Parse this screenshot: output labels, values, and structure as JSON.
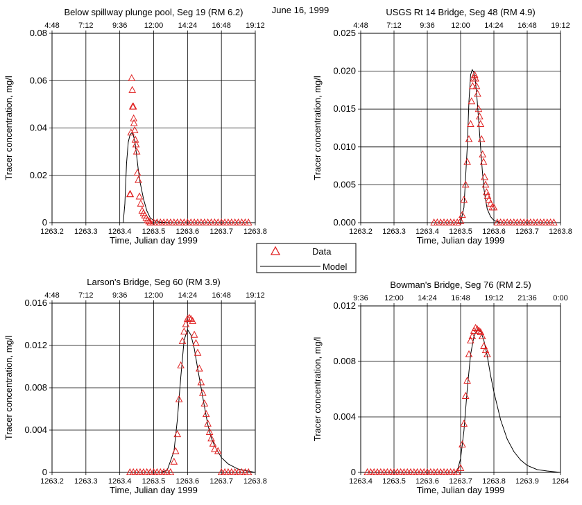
{
  "figure_title": "June 16, 1999",
  "legend": {
    "items": [
      {
        "label": "Data",
        "marker": "triangle",
        "color": "#e02020"
      },
      {
        "label": "Model",
        "marker": "line",
        "color": "#000000"
      }
    ]
  },
  "colors": {
    "data": "#e02020",
    "model": "#000000",
    "grid": "#000000"
  },
  "chart_data": [
    {
      "type": "line",
      "title": "Below spillway plunge pool, Seg 19 (RM 6.2)",
      "xlabel": "Time, Julian day 1999",
      "ylabel": "Tracer concentration, mg/l",
      "xlim": [
        1263.2,
        1263.8
      ],
      "ylim": [
        0,
        0.08
      ],
      "x_ticks": [
        "1263.2",
        "1263.3",
        "1263.4",
        "1263.5",
        "1263.6",
        "1263.7",
        "1263.8"
      ],
      "y_ticks": [
        "0",
        "0.02",
        "0.04",
        "0.06",
        "0.08"
      ],
      "top_ticks": [
        "4:48",
        "7:12",
        "9:36",
        "12:00",
        "14:24",
        "16:48",
        "19:12"
      ],
      "grid": true,
      "series": [
        {
          "name": "Data",
          "marker": "triangle",
          "x": [
            1263.43,
            1263.431,
            1263.433,
            1263.435,
            1263.437,
            1263.438,
            1263.44,
            1263.441,
            1263.442,
            1263.444,
            1263.446,
            1263.448,
            1263.45,
            1263.452,
            1263.455,
            1263.458,
            1263.462,
            1263.466,
            1263.47,
            1263.474,
            1263.478,
            1263.482,
            1263.486,
            1263.49,
            1263.5,
            1263.51,
            1263.52,
            1263.53,
            1263.54,
            1263.55,
            1263.56,
            1263.57,
            1263.58,
            1263.59,
            1263.6,
            1263.61,
            1263.62,
            1263.63,
            1263.64,
            1263.65,
            1263.66,
            1263.67,
            1263.68,
            1263.69,
            1263.7,
            1263.71,
            1263.72,
            1263.73,
            1263.74,
            1263.75,
            1263.76,
            1263.77,
            1263.78
          ],
          "y": [
            0.012,
            0.012,
            0.038,
            0.061,
            0.056,
            0.049,
            0.049,
            0.044,
            0.042,
            0.039,
            0.035,
            0.033,
            0.03,
            0.021,
            0.018,
            0.011,
            0.008,
            0.005,
            0.004,
            0.003,
            0.002,
            0.001,
            0.0005,
            0,
            0,
            0,
            0,
            0,
            0,
            0,
            0,
            0,
            0,
            0,
            0,
            0,
            0,
            0,
            0,
            0,
            0,
            0,
            0,
            0,
            0,
            0,
            0,
            0,
            0,
            0,
            0,
            0,
            0
          ]
        },
        {
          "name": "Model",
          "marker": "line",
          "x": [
            1263.2,
            1263.41,
            1263.415,
            1263.42,
            1263.425,
            1263.43,
            1263.435,
            1263.44,
            1263.445,
            1263.45,
            1263.455,
            1263.46,
            1263.47,
            1263.48,
            1263.49,
            1263.5,
            1263.52,
            1263.55,
            1263.8
          ],
          "y": [
            0,
            0,
            0.008,
            0.025,
            0.034,
            0.037,
            0.038,
            0.037,
            0.034,
            0.028,
            0.022,
            0.017,
            0.01,
            0.005,
            0.002,
            0.001,
            0.0002,
            0,
            0
          ]
        }
      ]
    },
    {
      "type": "line",
      "title": "USGS Rt 14 Bridge, Seg 48 (RM 4.9)",
      "xlabel": "Time, Julian day 1999",
      "ylabel": "Tracer concentration, mg/l",
      "xlim": [
        1263.2,
        1263.8
      ],
      "ylim": [
        0,
        0.025
      ],
      "x_ticks": [
        "1263.2",
        "1263.3",
        "1263.4",
        "1263.5",
        "1263.6",
        "1263.7",
        "1263.8"
      ],
      "y_ticks": [
        "0.000",
        "0.005",
        "0.010",
        "0.015",
        "0.020",
        "0.025"
      ],
      "top_ticks": [
        "4:48",
        "7:12",
        "9:36",
        "12:00",
        "14:24",
        "16:48",
        "19:12"
      ],
      "grid": true,
      "series": [
        {
          "name": "Data",
          "marker": "triangle",
          "x": [
            1263.42,
            1263.43,
            1263.44,
            1263.45,
            1263.46,
            1263.47,
            1263.48,
            1263.49,
            1263.5,
            1263.505,
            1263.51,
            1263.515,
            1263.52,
            1263.525,
            1263.53,
            1263.533,
            1263.536,
            1263.539,
            1263.542,
            1263.545,
            1263.548,
            1263.551,
            1263.554,
            1263.557,
            1263.56,
            1263.563,
            1263.566,
            1263.569,
            1263.572,
            1263.575,
            1263.578,
            1263.581,
            1263.585,
            1263.59,
            1263.595,
            1263.6,
            1263.61,
            1263.62,
            1263.63,
            1263.64,
            1263.65,
            1263.66,
            1263.67,
            1263.68,
            1263.69,
            1263.7,
            1263.71,
            1263.72,
            1263.73,
            1263.74,
            1263.75,
            1263.76,
            1263.77,
            1263.78
          ],
          "y": [
            0,
            0,
            0,
            0,
            0,
            0,
            0,
            0,
            0.0002,
            0.001,
            0.003,
            0.005,
            0.008,
            0.011,
            0.013,
            0.016,
            0.018,
            0.019,
            0.0195,
            0.019,
            0.018,
            0.017,
            0.015,
            0.014,
            0.013,
            0.011,
            0.009,
            0.008,
            0.006,
            0.005,
            0.004,
            0.0035,
            0.003,
            0.0025,
            0.002,
            0.002,
            0,
            0,
            0,
            0,
            0,
            0,
            0,
            0,
            0,
            0,
            0,
            0,
            0,
            0,
            0,
            0,
            0,
            0
          ]
        },
        {
          "name": "Model",
          "marker": "line",
          "x": [
            1263.2,
            1263.5,
            1263.51,
            1263.52,
            1263.525,
            1263.53,
            1263.535,
            1263.54,
            1263.545,
            1263.55,
            1263.555,
            1263.56,
            1263.565,
            1263.57,
            1263.575,
            1263.58,
            1263.59,
            1263.6,
            1263.62,
            1263.8
          ],
          "y": [
            0,
            0,
            0.002,
            0.01,
            0.016,
            0.0195,
            0.0202,
            0.0198,
            0.0185,
            0.016,
            0.013,
            0.01,
            0.007,
            0.0045,
            0.003,
            0.0018,
            0.0008,
            0.0003,
            0,
            0
          ]
        }
      ]
    },
    {
      "type": "line",
      "title": "Larson's Bridge, Seg 60 (RM 3.9)",
      "xlabel": "Time, Julian day 1999",
      "ylabel": "Tracer concentration, mg/l",
      "xlim": [
        1263.2,
        1263.8
      ],
      "ylim": [
        0,
        0.016
      ],
      "x_ticks": [
        "1263.2",
        "1263.3",
        "1263.4",
        "1263.5",
        "1263.6",
        "1263.7",
        "1263.8"
      ],
      "y_ticks": [
        "0",
        "0.004",
        "0.008",
        "0.012",
        "0.016"
      ],
      "top_ticks": [
        "4:48",
        "7:12",
        "9:36",
        "12:00",
        "14:24",
        "16:48",
        "19:12"
      ],
      "grid": true,
      "series": [
        {
          "name": "Data",
          "marker": "triangle",
          "x": [
            1263.43,
            1263.44,
            1263.45,
            1263.46,
            1263.47,
            1263.48,
            1263.49,
            1263.5,
            1263.51,
            1263.52,
            1263.53,
            1263.54,
            1263.55,
            1263.56,
            1263.565,
            1263.57,
            1263.575,
            1263.58,
            1263.585,
            1263.59,
            1263.595,
            1263.6,
            1263.605,
            1263.61,
            1263.615,
            1263.62,
            1263.625,
            1263.63,
            1263.635,
            1263.64,
            1263.645,
            1263.65,
            1263.655,
            1263.66,
            1263.665,
            1263.67,
            1263.675,
            1263.68,
            1263.69,
            1263.7,
            1263.71,
            1263.72,
            1263.73,
            1263.74,
            1263.75,
            1263.76,
            1263.77,
            1263.78
          ],
          "y": [
            0,
            0,
            0,
            0,
            0,
            0,
            0,
            0,
            0,
            0,
            0,
            0,
            0,
            0.001,
            0.002,
            0.0036,
            0.0069,
            0.0101,
            0.0124,
            0.0133,
            0.014,
            0.0145,
            0.0146,
            0.0145,
            0.0143,
            0.013,
            0.0122,
            0.0113,
            0.0098,
            0.0085,
            0.0075,
            0.0065,
            0.0055,
            0.0046,
            0.0038,
            0.0032,
            0.0027,
            0.0022,
            0.002,
            0,
            0,
            0,
            0,
            0,
            0,
            0,
            0,
            0
          ]
        },
        {
          "name": "Model",
          "marker": "line",
          "x": [
            1263.2,
            1263.52,
            1263.54,
            1263.56,
            1263.57,
            1263.58,
            1263.59,
            1263.6,
            1263.61,
            1263.62,
            1263.63,
            1263.64,
            1263.65,
            1263.66,
            1263.67,
            1263.68,
            1263.7,
            1263.72,
            1263.75,
            1263.8
          ],
          "y": [
            0,
            0,
            0.0002,
            0.002,
            0.005,
            0.009,
            0.0125,
            0.0135,
            0.013,
            0.0117,
            0.0098,
            0.008,
            0.0062,
            0.0045,
            0.0033,
            0.0025,
            0.0014,
            0.0008,
            0.0003,
            0
          ]
        }
      ]
    },
    {
      "type": "line",
      "title": "Bowman's Bridge, Seg 76 (RM 2.5)",
      "xlabel": "Time, Julian day 1999",
      "ylabel": "Tracer concentration, mg/l",
      "xlim": [
        1263.4,
        1264
      ],
      "ylim": [
        0,
        0.012
      ],
      "x_ticks": [
        "1263.4",
        "1263.5",
        "1263.6",
        "1263.7",
        "1263.8",
        "1263.9",
        "1264"
      ],
      "y_ticks": [
        "0",
        "0.004",
        "0.008",
        "0.012"
      ],
      "top_ticks": [
        "9:36",
        "12:00",
        "14:24",
        "16:48",
        "19:12",
        "21:36",
        "0:00"
      ],
      "grid": true,
      "series": [
        {
          "name": "Data",
          "marker": "triangle",
          "x": [
            1263.42,
            1263.43,
            1263.44,
            1263.45,
            1263.46,
            1263.47,
            1263.48,
            1263.49,
            1263.5,
            1263.51,
            1263.52,
            1263.53,
            1263.54,
            1263.55,
            1263.56,
            1263.57,
            1263.58,
            1263.59,
            1263.6,
            1263.61,
            1263.62,
            1263.63,
            1263.64,
            1263.65,
            1263.66,
            1263.67,
            1263.68,
            1263.69,
            1263.7,
            1263.705,
            1263.71,
            1263.715,
            1263.72,
            1263.725,
            1263.73,
            1263.735,
            1263.74,
            1263.745,
            1263.75,
            1263.755,
            1263.76,
            1263.765,
            1263.77,
            1263.775,
            1263.78
          ],
          "y": [
            0,
            0,
            0,
            0,
            0,
            0,
            0,
            0,
            0,
            0,
            0,
            0,
            0,
            0,
            0,
            0,
            0,
            0,
            0,
            0,
            0,
            0,
            0,
            0,
            0,
            0,
            0,
            0,
            0.0003,
            0.002,
            0.0035,
            0.0055,
            0.0066,
            0.0085,
            0.0095,
            0.0098,
            0.0102,
            0.0104,
            0.0103,
            0.0102,
            0.0101,
            0.0098,
            0.0091,
            0.0088,
            0.0085
          ]
        },
        {
          "name": "Model",
          "marker": "line",
          "x": [
            1263.4,
            1263.68,
            1263.69,
            1263.7,
            1263.71,
            1263.72,
            1263.73,
            1263.74,
            1263.75,
            1263.76,
            1263.77,
            1263.78,
            1263.79,
            1263.8,
            1263.82,
            1263.84,
            1263.86,
            1263.88,
            1263.9,
            1263.93,
            1263.96,
            1264
          ],
          "y": [
            0,
            0,
            0.0001,
            0.001,
            0.003,
            0.006,
            0.0085,
            0.0098,
            0.0103,
            0.0102,
            0.0095,
            0.0084,
            0.007,
            0.0058,
            0.0038,
            0.0024,
            0.0015,
            0.0009,
            0.0005,
            0.0002,
            0.0001,
            0
          ]
        }
      ]
    }
  ]
}
